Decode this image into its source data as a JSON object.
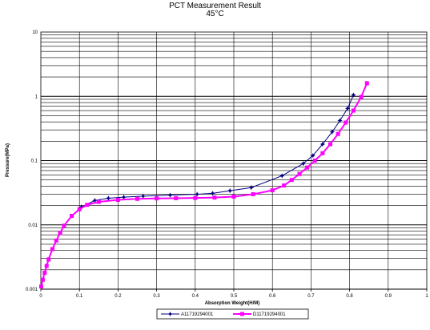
{
  "chart_data": {
    "type": "line",
    "title": "PCT Measurement Result",
    "subtitle": "45°C",
    "xlabel": "Absorption Weight(H/M)",
    "ylabel": "Pressure(MPa)",
    "xlim": [
      0,
      1
    ],
    "ylim": [
      0.001,
      10
    ],
    "y_scale": "log",
    "grid": true,
    "legend_position": "bottom",
    "x_ticks": [
      "0",
      "0.1",
      "0.2",
      "0.3",
      "0.4",
      "0.5",
      "0.6",
      "0.7",
      "0.8",
      "0.9",
      "1"
    ],
    "y_ticks": [
      "0.001",
      "0.01",
      "0.1",
      "1",
      "10"
    ],
    "series": [
      {
        "name": "A11719294001",
        "color": "#000080",
        "marker": "star",
        "x": [
          0.105,
          0.14,
          0.175,
          0.215,
          0.265,
          0.335,
          0.405,
          0.445,
          0.49,
          0.545,
          0.625,
          0.68,
          0.705,
          0.73,
          0.755,
          0.775,
          0.795,
          0.81
        ],
        "y": [
          0.019,
          0.024,
          0.026,
          0.027,
          0.028,
          0.029,
          0.03,
          0.031,
          0.034,
          0.038,
          0.058,
          0.09,
          0.12,
          0.18,
          0.28,
          0.42,
          0.65,
          1.05
        ]
      },
      {
        "name": "D11719294001",
        "color": "#ff00ff",
        "marker": "square",
        "x": [
          0.001,
          0.005,
          0.01,
          0.015,
          0.02,
          0.03,
          0.04,
          0.05,
          0.06,
          0.08,
          0.1,
          0.12,
          0.15,
          0.2,
          0.25,
          0.3,
          0.35,
          0.4,
          0.45,
          0.5,
          0.55,
          0.6,
          0.63,
          0.65,
          0.67,
          0.69,
          0.71,
          0.73,
          0.75,
          0.77,
          0.79,
          0.81,
          0.83,
          0.845
        ],
        "y": [
          0.0011,
          0.0014,
          0.0018,
          0.0023,
          0.0029,
          0.0042,
          0.0057,
          0.0075,
          0.0097,
          0.0138,
          0.0175,
          0.0205,
          0.0228,
          0.0245,
          0.0254,
          0.0258,
          0.026,
          0.0262,
          0.0266,
          0.0275,
          0.03,
          0.0345,
          0.041,
          0.05,
          0.062,
          0.078,
          0.1,
          0.13,
          0.18,
          0.26,
          0.39,
          0.6,
          0.98,
          1.6
        ]
      }
    ]
  }
}
